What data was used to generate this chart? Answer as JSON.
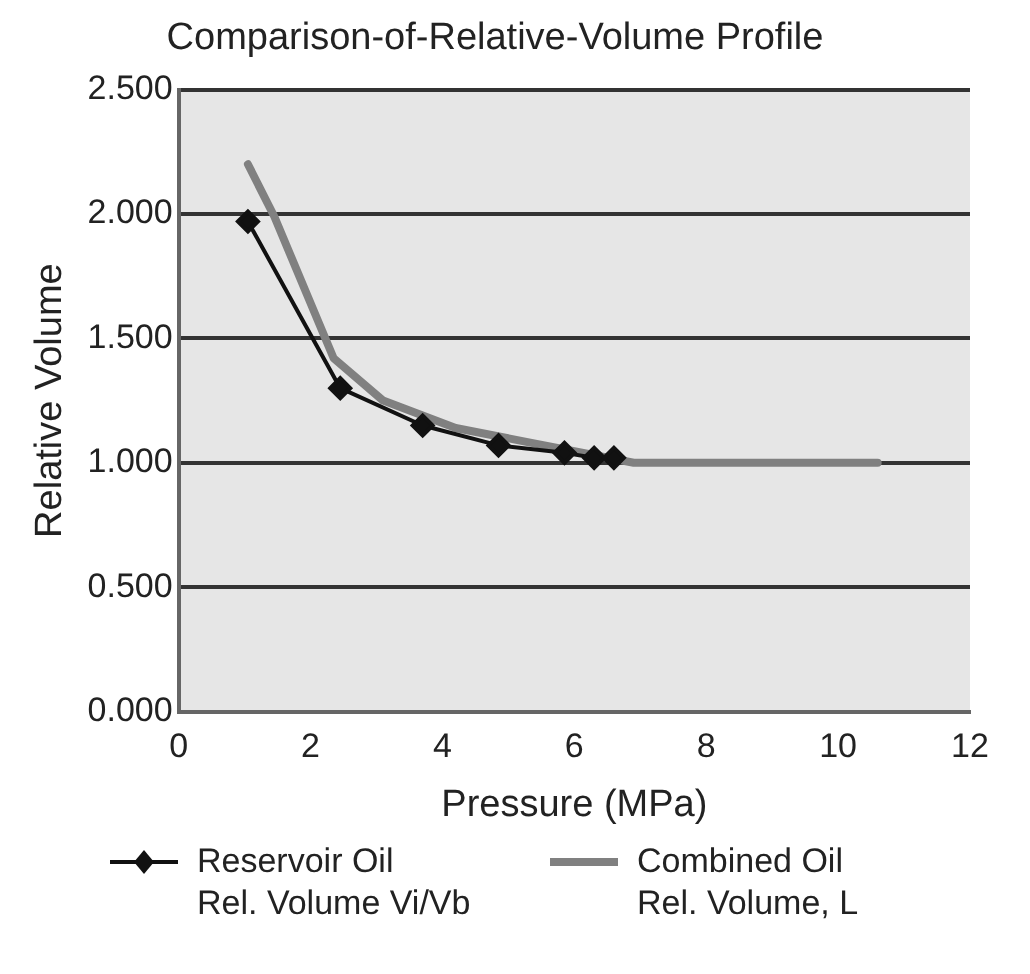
{
  "chart_data": {
    "type": "line",
    "title": "Comparison-of-Relative-Volume Profile",
    "xlabel": "Pressure (MPa)",
    "ylabel": "Relative Volume",
    "xlim": [
      0,
      12
    ],
    "xticks": [
      0,
      2,
      4,
      6,
      8,
      10,
      12
    ],
    "ylim": [
      0,
      2.5
    ],
    "yticks": [
      {
        "value": 0,
        "label": "0.000"
      },
      {
        "value": 0.5,
        "label": "0.500"
      },
      {
        "value": 1,
        "label": "1.000"
      },
      {
        "value": 1.5,
        "label": "1.500"
      },
      {
        "value": 2,
        "label": "2.000"
      },
      {
        "value": 2.5,
        "label": "2.500"
      }
    ],
    "grid": "y",
    "legend": "bottom",
    "series": [
      {
        "name": "Reservoir Oil\nRel. Volume Vi/Vb",
        "color": "#111111",
        "marker": "diamond",
        "x": [
          1.05,
          2.45,
          3.7,
          4.85,
          5.85,
          6.3,
          6.6
        ],
        "values": [
          1.97,
          1.3,
          1.15,
          1.07,
          1.04,
          1.02,
          1.02
        ]
      },
      {
        "name": "Combined Oil\nRel. Volume, L",
        "color": "#808080",
        "marker": "none",
        "x": [
          1.05,
          1.45,
          2.35,
          3.1,
          4.2,
          5.35,
          6.9,
          10.6
        ],
        "values": [
          2.2,
          1.99,
          1.42,
          1.25,
          1.14,
          1.08,
          1.0,
          1.0
        ]
      }
    ]
  }
}
